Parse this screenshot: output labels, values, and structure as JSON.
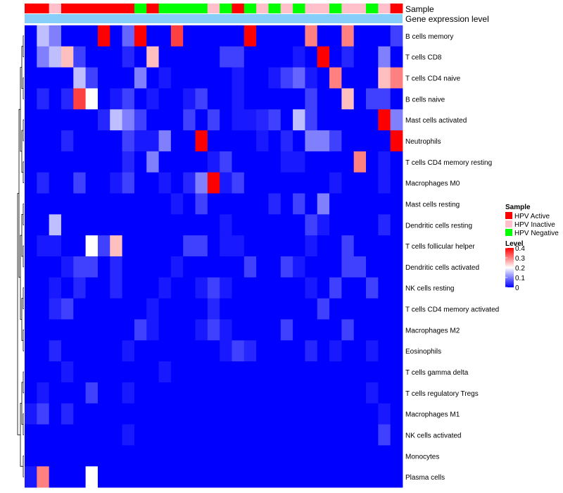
{
  "chart_data": {
    "type": "heatmap",
    "annotation_rows": [
      "Sample",
      "Gene expression level"
    ],
    "rows": [
      "B cells memory",
      "T cells CD8",
      "T cells CD4 naive",
      "B cells naive",
      "Mast cells activated",
      "Neutrophils",
      "T cells CD4 memory resting",
      "Macrophages M0",
      "Mast cells resting",
      "Dendritic cells resting",
      "T cells follicular helper",
      "Dendritic cells activated",
      "NK cells resting",
      "T cells CD4 memory activated",
      "Macrophages M2",
      "Eosinophils",
      "T cells gamma delta",
      "T cells regulatory  Tregs",
      "Macrophages M1",
      "NK cells activated",
      "Monocytes",
      "Plasma cells"
    ],
    "samples": [
      "A",
      "A",
      "I",
      "A",
      "A",
      "A",
      "A",
      "A",
      "A",
      "N",
      "A",
      "N",
      "N",
      "N",
      "N",
      "I",
      "N",
      "A",
      "N",
      "I",
      "N",
      "I",
      "N",
      "I",
      "I",
      "N",
      "I",
      "I",
      "N",
      "I",
      "A"
    ],
    "values": [
      [
        0.0,
        0.15,
        0.1,
        0.0,
        0.0,
        0.0,
        0.4,
        0.0,
        0.08,
        0.4,
        0.0,
        0.0,
        0.35,
        0.0,
        0.0,
        0.0,
        0.0,
        0.0,
        0.4,
        0.0,
        0.0,
        0.0,
        0.0,
        0.3,
        0.0,
        0.0,
        0.3,
        0.0,
        0.0,
        0.0,
        0.05
      ],
      [
        0.0,
        0.1,
        0.15,
        0.25,
        0.05,
        0.0,
        0.0,
        0.0,
        0.03,
        0.0,
        0.25,
        0.0,
        0.0,
        0.0,
        0.0,
        0.0,
        0.05,
        0.05,
        0.0,
        0.0,
        0.0,
        0.0,
        0.02,
        0.0,
        0.4,
        0.0,
        0.03,
        0.0,
        0.0,
        0.1,
        0.0
      ],
      [
        0.0,
        0.0,
        0.0,
        0.0,
        0.15,
        0.05,
        0.0,
        0.0,
        0.0,
        0.1,
        0.0,
        0.02,
        0.0,
        0.0,
        0.0,
        0.0,
        0.0,
        0.02,
        0.0,
        0.0,
        0.02,
        0.05,
        0.08,
        0.02,
        0.0,
        0.3,
        0.0,
        0.0,
        0.0,
        0.25,
        0.3
      ],
      [
        0.0,
        0.03,
        0.0,
        0.03,
        0.35,
        0.2,
        0.0,
        0.02,
        0.05,
        0.0,
        0.02,
        0.0,
        0.0,
        0.02,
        0.05,
        0.0,
        0.0,
        0.02,
        0.0,
        0.0,
        0.0,
        0.0,
        0.0,
        0.05,
        0.0,
        0.0,
        0.25,
        0.0,
        0.05,
        0.05,
        0.0
      ],
      [
        0.0,
        0.0,
        0.0,
        0.0,
        0.0,
        0.0,
        0.03,
        0.15,
        0.1,
        0.05,
        0.0,
        0.0,
        0.0,
        0.05,
        0.0,
        0.05,
        0.0,
        0.02,
        0.02,
        0.03,
        0.05,
        0.0,
        0.15,
        0.05,
        0.0,
        0.0,
        0.0,
        0.0,
        0.0,
        0.4,
        0.1
      ],
      [
        0.0,
        0.0,
        0.0,
        0.03,
        0.0,
        0.0,
        0.0,
        0.0,
        0.05,
        0.02,
        0.02,
        0.1,
        0.0,
        0.0,
        0.4,
        0.0,
        0.0,
        0.0,
        0.0,
        0.02,
        0.0,
        0.03,
        0.0,
        0.1,
        0.1,
        0.05,
        0.0,
        0.0,
        0.0,
        0.0,
        0.4
      ],
      [
        0.0,
        0.0,
        0.0,
        0.0,
        0.0,
        0.0,
        0.0,
        0.0,
        0.03,
        0.0,
        0.1,
        0.0,
        0.0,
        0.0,
        0.0,
        0.02,
        0.05,
        0.0,
        0.0,
        0.0,
        0.0,
        0.02,
        0.02,
        0.0,
        0.0,
        0.0,
        0.0,
        0.3,
        0.0,
        0.02,
        0.0
      ],
      [
        0.0,
        0.03,
        0.0,
        0.0,
        0.05,
        0.0,
        0.0,
        0.02,
        0.05,
        0.0,
        0.0,
        0.02,
        0.0,
        0.03,
        0.1,
        0.4,
        0.02,
        0.05,
        0.0,
        0.0,
        0.0,
        0.0,
        0.0,
        0.0,
        0.0,
        0.02,
        0.0,
        0.0,
        0.0,
        0.02,
        0.0
      ],
      [
        0.0,
        0.0,
        0.0,
        0.0,
        0.0,
        0.0,
        0.0,
        0.0,
        0.0,
        0.0,
        0.0,
        0.0,
        0.02,
        0.0,
        0.05,
        0.0,
        0.0,
        0.0,
        0.0,
        0.0,
        0.03,
        0.0,
        0.05,
        0.0,
        0.1,
        0.0,
        0.0,
        0.0,
        0.0,
        0.0,
        0.0
      ],
      [
        0.0,
        0.0,
        0.15,
        0.0,
        0.0,
        0.0,
        0.0,
        0.0,
        0.0,
        0.0,
        0.0,
        0.0,
        0.0,
        0.0,
        0.0,
        0.0,
        0.02,
        0.0,
        0.0,
        0.0,
        0.0,
        0.0,
        0.0,
        0.05,
        0.02,
        0.0,
        0.0,
        0.0,
        0.0,
        0.03,
        0.0
      ],
      [
        0.0,
        0.02,
        0.02,
        0.0,
        0.0,
        0.2,
        0.05,
        0.25,
        0.0,
        0.0,
        0.0,
        0.0,
        0.0,
        0.05,
        0.05,
        0.0,
        0.02,
        0.02,
        0.0,
        0.0,
        0.0,
        0.0,
        0.0,
        0.02,
        0.0,
        0.0,
        0.05,
        0.0,
        0.0,
        0.0,
        0.0
      ],
      [
        0.0,
        0.0,
        0.0,
        0.02,
        0.05,
        0.05,
        0.0,
        0.03,
        0.0,
        0.0,
        0.0,
        0.0,
        0.02,
        0.0,
        0.0,
        0.0,
        0.0,
        0.0,
        0.05,
        0.0,
        0.0,
        0.05,
        0.02,
        0.0,
        0.0,
        0.0,
        0.05,
        0.05,
        0.0,
        0.0,
        0.0
      ],
      [
        0.0,
        0.0,
        0.02,
        0.0,
        0.03,
        0.0,
        0.0,
        0.03,
        0.0,
        0.0,
        0.0,
        0.02,
        0.0,
        0.0,
        0.02,
        0.05,
        0.02,
        0.0,
        0.0,
        0.0,
        0.0,
        0.0,
        0.0,
        0.02,
        0.0,
        0.05,
        0.0,
        0.0,
        0.05,
        0.0,
        0.0
      ],
      [
        0.0,
        0.0,
        0.03,
        0.05,
        0.0,
        0.0,
        0.0,
        0.0,
        0.0,
        0.0,
        0.02,
        0.0,
        0.0,
        0.0,
        0.0,
        0.03,
        0.0,
        0.0,
        0.0,
        0.0,
        0.0,
        0.0,
        0.0,
        0.0,
        0.05,
        0.0,
        0.0,
        0.0,
        0.0,
        0.0,
        0.0
      ],
      [
        0.0,
        0.0,
        0.0,
        0.0,
        0.0,
        0.0,
        0.0,
        0.0,
        0.0,
        0.05,
        0.02,
        0.0,
        0.0,
        0.0,
        0.02,
        0.05,
        0.02,
        0.0,
        0.0,
        0.0,
        0.0,
        0.05,
        0.0,
        0.0,
        0.0,
        0.0,
        0.05,
        0.0,
        0.0,
        0.0,
        0.0
      ],
      [
        0.0,
        0.0,
        0.03,
        0.0,
        0.0,
        0.0,
        0.0,
        0.0,
        0.02,
        0.0,
        0.0,
        0.0,
        0.0,
        0.0,
        0.0,
        0.0,
        0.02,
        0.05,
        0.03,
        0.0,
        0.0,
        0.0,
        0.0,
        0.03,
        0.0,
        0.02,
        0.0,
        0.0,
        0.02,
        0.0,
        0.0
      ],
      [
        0.0,
        0.0,
        0.0,
        0.02,
        0.0,
        0.0,
        0.0,
        0.0,
        0.0,
        0.0,
        0.0,
        0.02,
        0.0,
        0.0,
        0.0,
        0.0,
        0.0,
        0.0,
        0.0,
        0.0,
        0.0,
        0.0,
        0.0,
        0.0,
        0.0,
        0.0,
        0.0,
        0.0,
        0.0,
        0.0,
        0.0
      ],
      [
        0.0,
        0.02,
        0.0,
        0.0,
        0.0,
        0.05,
        0.0,
        0.0,
        0.02,
        0.0,
        0.0,
        0.0,
        0.0,
        0.0,
        0.0,
        0.0,
        0.0,
        0.0,
        0.0,
        0.0,
        0.0,
        0.0,
        0.0,
        0.0,
        0.0,
        0.0,
        0.0,
        0.0,
        0.02,
        0.0,
        0.0
      ],
      [
        0.02,
        0.05,
        0.0,
        0.03,
        0.0,
        0.0,
        0.0,
        0.0,
        0.0,
        0.0,
        0.0,
        0.0,
        0.0,
        0.0,
        0.0,
        0.0,
        0.0,
        0.0,
        0.0,
        0.0,
        0.0,
        0.0,
        0.0,
        0.0,
        0.0,
        0.0,
        0.0,
        0.0,
        0.0,
        0.02,
        0.0
      ],
      [
        0.0,
        0.0,
        0.0,
        0.0,
        0.0,
        0.0,
        0.0,
        0.0,
        0.02,
        0.0,
        0.0,
        0.0,
        0.0,
        0.0,
        0.0,
        0.0,
        0.0,
        0.0,
        0.0,
        0.0,
        0.0,
        0.0,
        0.0,
        0.0,
        0.0,
        0.0,
        0.0,
        0.0,
        0.0,
        0.05,
        0.0
      ],
      [
        0.0,
        0.0,
        0.0,
        0.0,
        0.0,
        0.0,
        0.0,
        0.0,
        0.0,
        0.0,
        0.0,
        0.0,
        0.0,
        0.0,
        0.0,
        0.0,
        0.0,
        0.0,
        0.0,
        0.0,
        0.0,
        0.0,
        0.0,
        0.0,
        0.0,
        0.0,
        0.0,
        0.0,
        0.0,
        0.0,
        0.0
      ],
      [
        0.02,
        0.3,
        0.0,
        0.0,
        0.0,
        0.2,
        0.0,
        0.0,
        0.0,
        0.0,
        0.0,
        0.0,
        0.0,
        0.0,
        0.0,
        0.0,
        0.0,
        0.0,
        0.0,
        0.0,
        0.0,
        0.0,
        0.0,
        0.0,
        0.0,
        0.0,
        0.0,
        0.0,
        0.0,
        0.0,
        0.0
      ]
    ],
    "legend_sample": {
      "title": "Sample",
      "entries": [
        {
          "key": "A",
          "label": "HPV Active",
          "color": "#ff0000"
        },
        {
          "key": "I",
          "label": "HPV Inactive",
          "color": "#ffc0cb"
        },
        {
          "key": "N",
          "label": "HPV Negative",
          "color": "#00ff00"
        }
      ]
    },
    "legend_level": {
      "title": "Level",
      "ticks": [
        "0.4",
        "0.3",
        "0.2",
        "0.1",
        "0"
      ],
      "range": [
        0,
        0.4
      ],
      "colors": [
        "#0000ff",
        "#ffffff",
        "#ff0000"
      ]
    },
    "gene_expression_color": "#87cefa"
  }
}
